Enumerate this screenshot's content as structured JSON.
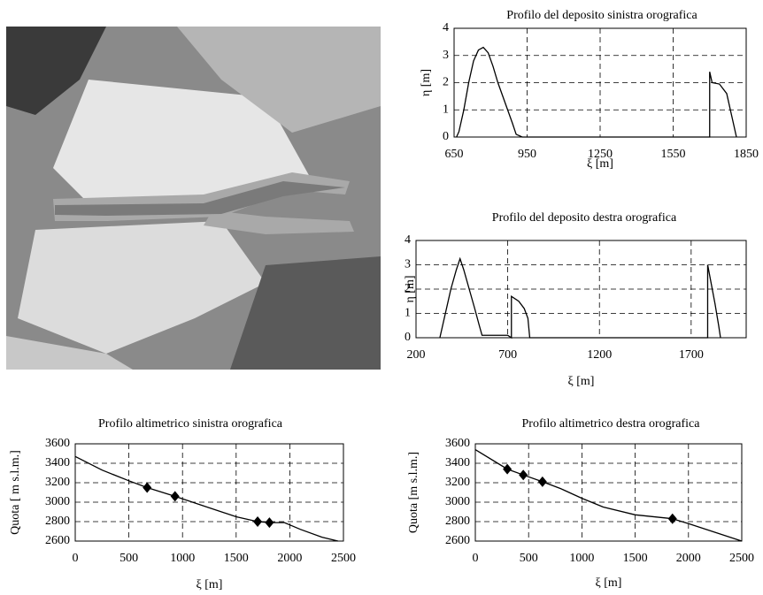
{
  "chart_data": [
    {
      "type": "line",
      "title": "Profilo del deposito sinistra orografica",
      "x_label": "ξ [m]",
      "y_label": "η [m]",
      "x": [
        660,
        670,
        690,
        710,
        730,
        750,
        770,
        790,
        810,
        830,
        850,
        870,
        890,
        905,
        930,
        1700,
        1700,
        1710,
        1740,
        1770,
        1790,
        1810
      ],
      "values": [
        0,
        0.2,
        1,
        2,
        2.8,
        3.2,
        3.3,
        3.1,
        2.6,
        2,
        1.5,
        1,
        0.5,
        0.1,
        0,
        0,
        2.4,
        2,
        1.95,
        1.6,
        0.8,
        0
      ],
      "color": "#000000",
      "xlim": [
        650,
        1850
      ],
      "xticks": [
        650,
        950,
        1250,
        1550,
        1850
      ],
      "ylim": [
        0,
        4
      ],
      "yticks": [
        0,
        1,
        2,
        3,
        4
      ],
      "grid": true
    },
    {
      "type": "line",
      "title": "Profilo del deposito destra orografica",
      "x_label": "ξ [m]",
      "y_label": "η [m]",
      "x": [
        330,
        360,
        390,
        420,
        440,
        460,
        490,
        520,
        545,
        560,
        700,
        720,
        720,
        760,
        790,
        810,
        820,
        1790,
        1790,
        1810,
        1830,
        1850,
        1860
      ],
      "values": [
        0,
        1,
        2,
        2.8,
        3.25,
        2.8,
        2,
        1.2,
        0.5,
        0.1,
        0.1,
        0,
        1.7,
        1.5,
        1.2,
        0.8,
        0,
        0,
        3,
        2.2,
        1.4,
        0.5,
        0
      ],
      "color": "#000000",
      "xlim": [
        200,
        2000
      ],
      "xticks": [
        200,
        700,
        1200,
        1700
      ],
      "ylim": [
        0,
        4
      ],
      "yticks": [
        0,
        1,
        2,
        3,
        4
      ],
      "grid": true
    },
    {
      "type": "line",
      "title": "Profilo altimetrico sinistra orografica",
      "x_label": "ξ [m]",
      "y_label": "Quota [ m s.l.m.]",
      "x": [
        0,
        250,
        500,
        670,
        930,
        1200,
        1500,
        1700,
        1810,
        1950,
        2100,
        2300,
        2450
      ],
      "values": [
        3470,
        3330,
        3220,
        3150,
        3060,
        2960,
        2850,
        2800,
        2790,
        2790,
        2720,
        2640,
        2600
      ],
      "markers": {
        "x": [
          670,
          930,
          1700,
          1810
        ],
        "values": [
          3150,
          3060,
          2800,
          2790
        ]
      },
      "color": "#000000",
      "xlim": [
        0,
        2500
      ],
      "xticks": [
        0,
        500,
        1000,
        1500,
        2000,
        2500
      ],
      "ylim": [
        2600,
        3600
      ],
      "yticks": [
        2600,
        2800,
        3000,
        3200,
        3400,
        3600
      ],
      "grid": true
    },
    {
      "type": "line",
      "title": "Profilo altimetrico destra orografica",
      "x_label": "ξ [m]",
      "y_label": "Quota [m s.l.m.]",
      "x": [
        0,
        300,
        450,
        630,
        800,
        1000,
        1200,
        1500,
        1850,
        2000,
        2250,
        2500
      ],
      "values": [
        3540,
        3340,
        3280,
        3210,
        3140,
        3040,
        2950,
        2870,
        2830,
        2780,
        2690,
        2600
      ],
      "markers": {
        "x": [
          300,
          450,
          630,
          1850
        ],
        "values": [
          3340,
          3280,
          3210,
          2830
        ]
      },
      "color": "#000000",
      "xlim": [
        0,
        2500
      ],
      "xticks": [
        0,
        500,
        1000,
        1500,
        2000,
        2500
      ],
      "ylim": [
        2600,
        3600
      ],
      "yticks": [
        2600,
        2800,
        3000,
        3200,
        3400,
        3600
      ],
      "grid": true
    }
  ]
}
